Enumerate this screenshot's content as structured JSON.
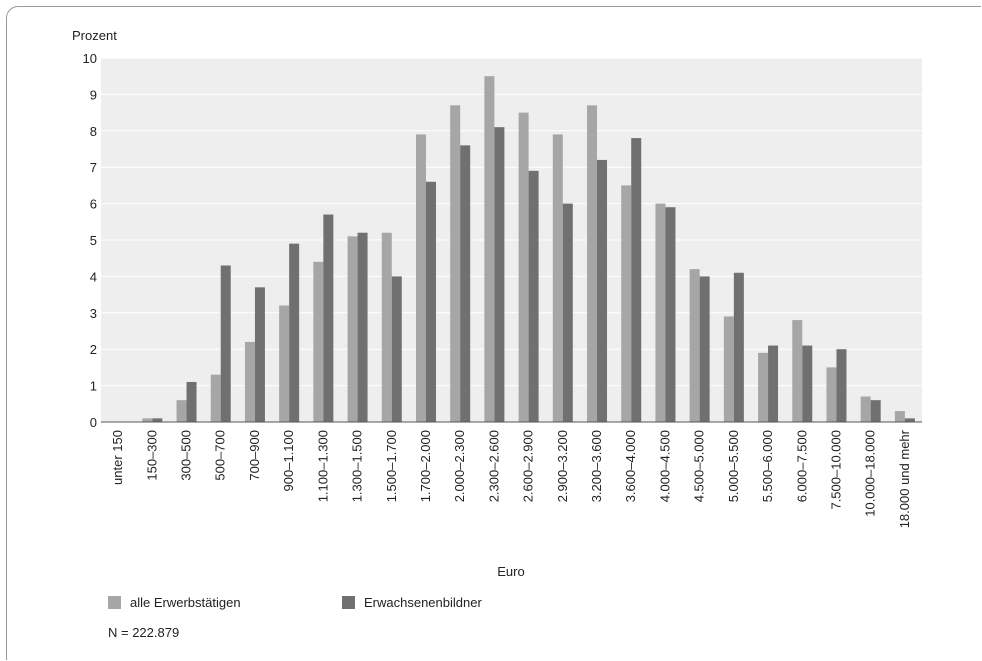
{
  "chart_data": {
    "type": "bar",
    "ylabel": "Prozent",
    "xlabel": "Euro",
    "ylim": [
      0,
      10
    ],
    "yticks": [
      0,
      1,
      2,
      3,
      4,
      5,
      6,
      7,
      8,
      9,
      10
    ],
    "grid": true,
    "categories": [
      "unter 150",
      "150–300",
      "300–500",
      "500–700",
      "700–900",
      "900–1.100",
      "1.100–1.300",
      "1.300–1.500",
      "1.500–1.700",
      "1.700–2.000",
      "2.000–2.300",
      "2.300–2.600",
      "2.600–2.900",
      "2.900–3.200",
      "3.200–3.600",
      "3.600–4.000",
      "4.000–4.500",
      "4.500–5.000",
      "5.000–5.500",
      "5.500–6.000",
      "6.000–7.500",
      "7.500–10.000",
      "10.000–18.000",
      "18.000 und mehr"
    ],
    "series": [
      {
        "name": "alle Erwerbstätigen",
        "color": "#a6a6a6",
        "values": [
          0,
          0.1,
          0.6,
          1.3,
          2.2,
          3.2,
          4.4,
          5.1,
          5.2,
          7.9,
          8.7,
          9.5,
          8.5,
          7.9,
          8.7,
          6.5,
          6.0,
          4.2,
          2.9,
          1.9,
          2.8,
          1.5,
          0.7,
          0.3
        ]
      },
      {
        "name": "Erwachsenenbildner",
        "color": "#707070",
        "values": [
          0,
          0.1,
          1.1,
          4.3,
          3.7,
          4.9,
          5.7,
          5.2,
          4.0,
          6.6,
          7.6,
          8.1,
          6.9,
          6.0,
          7.2,
          7.8,
          5.9,
          4.0,
          4.1,
          2.1,
          2.1,
          2.0,
          0.6,
          0.1
        ]
      }
    ],
    "legend_position": "bottom-left",
    "note": "N = 222.879"
  }
}
